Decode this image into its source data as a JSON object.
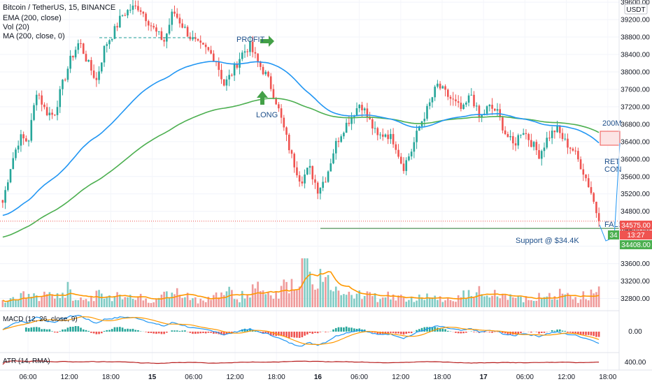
{
  "header": {
    "title": "Bitcoin / TetherUS, 15, BINANCE",
    "ema_label": "EMA (200, close)",
    "vol_label": "Vol (20)",
    "ma_label": "MA (200, close, 0)",
    "currency": "USDT"
  },
  "colors": {
    "up": "#26a69a",
    "down": "#ef5350",
    "ema": "#2196f3",
    "ma": "#4caf50",
    "support": "#2e7d32",
    "price_tag": "#ef5350",
    "support_tag": "#4caf50",
    "annotation_arrow": "#43a047",
    "projection": "#2196f3",
    "vol_ma": "#ff9800",
    "atr": "#b71c1c"
  },
  "chart_data": {
    "type": "candlestick",
    "symbol": "Bitcoin / TetherUS",
    "interval": "15",
    "exchange": "BINANCE",
    "ylim": [
      32600,
      39650
    ],
    "y_ticks": [
      32800,
      33200,
      33600,
      34000,
      34400,
      34800,
      35200,
      35600,
      36000,
      36400,
      36800,
      37200,
      37600,
      38000,
      38400,
      38800,
      39200,
      39600
    ],
    "x_ticks": [
      "06:00",
      "12:00",
      "18:00",
      "15",
      "06:00",
      "12:00",
      "18:00",
      "16",
      "06:00",
      "12:00",
      "18:00",
      "17",
      "06:00",
      "12:00",
      "18:00"
    ],
    "close_path": [
      35000,
      35900,
      36500,
      36400,
      37600,
      37100,
      37000,
      37700,
      38300,
      38700,
      38200,
      37800,
      38600,
      38900,
      39300,
      39450,
      39500,
      39200,
      38900,
      38700,
      39400,
      39100,
      38800,
      38600,
      38500,
      38300,
      37700,
      38000,
      38400,
      38600,
      38200,
      37900,
      37400,
      36700,
      36000,
      35500,
      35800,
      35300,
      35600,
      36300,
      36700,
      37000,
      37300,
      36900,
      36500,
      36600,
      36400,
      35800,
      36200,
      36800,
      37200,
      37700,
      37500,
      37300,
      37100,
      37500,
      36900,
      37200,
      37100,
      36600,
      36300,
      36700,
      36400,
      36100,
      36500,
      36700,
      36400,
      36200,
      35800,
      35300,
      34575
    ],
    "current_price": 34575.0,
    "current_price_label": "34575.00",
    "timer_label": "13:27",
    "support_level": 34408.0,
    "support_label": "34408.00",
    "support_tag_partial": "34",
    "annotations": {
      "profit": "PROFIT",
      "long": "LONG",
      "ma200_partial": "200M",
      "retest_partial": "RET",
      "confirm_partial": "CON",
      "false_partial": "FALS",
      "support": "Support @ $34.4K"
    },
    "volume_profile": [
      0.15,
      0.2,
      0.25,
      0.2,
      0.3,
      0.2,
      0.35,
      0.2,
      0.15,
      0.25,
      0.2,
      0.3,
      0.25,
      0.2,
      0.15,
      0.2,
      0.25,
      0.3,
      0.2,
      0.15,
      0.2,
      0.25,
      0.3,
      0.2,
      0.25,
      0.35,
      0.4,
      0.3,
      0.5,
      0.3,
      0.95,
      0.6,
      0.5,
      0.4,
      0.35,
      0.3,
      0.25,
      0.2,
      0.25,
      0.2,
      0.15,
      0.2,
      0.25,
      0.2,
      0.15,
      0.2,
      0.25,
      0.3,
      0.2,
      0.25,
      0.2,
      0.15,
      0.2,
      0.25,
      0.2,
      0.3,
      0.2,
      0.15,
      0.25,
      0.4
    ],
    "macd": {
      "label": "MACD (12, 26, close, 9)",
      "tick": "0.00"
    },
    "atr": {
      "label": "ATR (14, RMA)",
      "tick": "400.00"
    }
  }
}
